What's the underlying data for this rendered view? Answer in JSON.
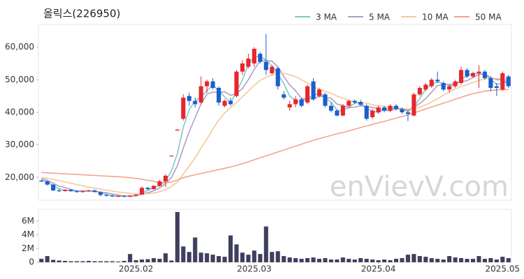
{
  "chart_data": [
    {
      "type": "candlestick",
      "title": "올릭스(226950)",
      "watermark": "enVievV.com",
      "legend": "top-right",
      "up_color": "#e8262d",
      "down_color": "#1a5fcc",
      "ylim": [
        13000,
        67000
      ],
      "yticks": [
        {
          "value": 20000,
          "label": "20,000"
        },
        {
          "value": 30000,
          "label": "30,000"
        },
        {
          "value": 40000,
          "label": "40,000"
        },
        {
          "value": 50000,
          "label": "50,000"
        },
        {
          "value": 60000,
          "label": "60,000"
        }
      ],
      "open": [
        19000,
        18800,
        17800,
        16000,
        15800,
        16200,
        15800,
        15500,
        15800,
        16000,
        15500,
        14600,
        14400,
        14200,
        14300,
        14100,
        14400,
        14700,
        16800,
        16400,
        17400,
        18800,
        26600,
        34400,
        38000,
        45000,
        43500,
        43000,
        48000,
        49500,
        47500,
        42000,
        43500,
        45000,
        52500,
        54000,
        55000,
        58000,
        55500,
        52000,
        53500,
        45500,
        41500,
        42500,
        44000,
        43000,
        49500,
        45000,
        45500,
        42000,
        40500,
        39000,
        42000,
        43500,
        43200,
        42000,
        38500,
        40000,
        41500,
        40500,
        42000,
        41000,
        40000,
        39000,
        45500,
        47000,
        48000,
        50000,
        49000,
        47000,
        48000,
        49000,
        53000,
        51000,
        52000,
        52500,
        50500,
        48000,
        47000,
        51000
      ],
      "high": [
        19300,
        19000,
        17900,
        16500,
        16400,
        16400,
        16000,
        16000,
        16200,
        16300,
        15600,
        15000,
        14700,
        14500,
        14600,
        14600,
        14900,
        17200,
        17000,
        17600,
        19200,
        21000,
        26700,
        34700,
        45500,
        46000,
        44500,
        51000,
        50000,
        50500,
        48000,
        44000,
        44500,
        53000,
        56000,
        58000,
        60000,
        58500,
        64000,
        54500,
        54000,
        46500,
        43500,
        45000,
        44500,
        48500,
        50500,
        47500,
        46000,
        43000,
        41000,
        42500,
        43800,
        44000,
        43800,
        42500,
        41000,
        42000,
        42000,
        42500,
        42500,
        41500,
        40500,
        46000,
        48000,
        49000,
        50500,
        52500,
        49500,
        48500,
        50000,
        54000,
        53500,
        52500,
        54500,
        53000,
        51000,
        49000,
        52500,
        51500
      ],
      "low": [
        18600,
        17500,
        15800,
        15500,
        15600,
        15600,
        15300,
        15300,
        15600,
        15400,
        14200,
        14100,
        14000,
        13900,
        14000,
        13900,
        14200,
        14600,
        16100,
        16300,
        17200,
        17000,
        26600,
        34400,
        37500,
        42000,
        41500,
        42500,
        46000,
        47000,
        42000,
        41500,
        42000,
        44500,
        51500,
        53500,
        54000,
        55000,
        51500,
        51500,
        47000,
        44000,
        40500,
        41500,
        41500,
        42500,
        43500,
        44500,
        41500,
        40000,
        38800,
        38800,
        41500,
        42500,
        42000,
        37500,
        38000,
        39500,
        40000,
        40000,
        40500,
        39500,
        37300,
        38800,
        45000,
        46500,
        47500,
        49000,
        46500,
        46000,
        47500,
        48500,
        50500,
        50500,
        47500,
        50000,
        46500,
        45000,
        46500,
        47500
      ],
      "close": [
        18800,
        17800,
        16000,
        15800,
        16200,
        15800,
        15500,
        15800,
        16000,
        15500,
        14600,
        14400,
        14200,
        14300,
        14100,
        14400,
        14700,
        16800,
        16400,
        17400,
        18800,
        20500,
        26700,
        34700,
        44500,
        43500,
        42500,
        48000,
        49500,
        47500,
        43000,
        43500,
        42500,
        52500,
        55000,
        56500,
        59500,
        55500,
        53000,
        54000,
        48000,
        44500,
        42500,
        44000,
        42000,
        48000,
        44000,
        47000,
        42000,
        40500,
        39000,
        42000,
        43500,
        43000,
        42300,
        38000,
        40500,
        41500,
        40500,
        42000,
        41000,
        40000,
        39500,
        45500,
        47500,
        48500,
        50000,
        49500,
        47000,
        48000,
        49500,
        53000,
        51000,
        52000,
        52500,
        50500,
        47500,
        47500,
        52000,
        48000
      ],
      "series": [
        {
          "name": "3 MA",
          "color": "#7ecbc4",
          "values": [
            19200,
            18600,
            17500,
            16500,
            16000,
            15900,
            15800,
            15700,
            15800,
            15800,
            15400,
            14800,
            14400,
            14300,
            14200,
            14300,
            14400,
            15300,
            16000,
            16900,
            17500,
            18900,
            22000,
            27300,
            35300,
            40900,
            43500,
            44700,
            46700,
            48300,
            46700,
            44700,
            43000,
            46200,
            50000,
            54700,
            57000,
            57200,
            56000,
            54200,
            51700,
            48800,
            45000,
            43700,
            42800,
            44700,
            44700,
            46300,
            44300,
            43200,
            40500,
            40500,
            41500,
            42800,
            42900,
            41100,
            40300,
            40000,
            40800,
            41300,
            41200,
            41000,
            40200,
            41700,
            44200,
            47200,
            48700,
            49300,
            48800,
            48200,
            48200,
            50200,
            51200,
            52000,
            51800,
            51700,
            50200,
            48500,
            49000,
            49200
          ]
        },
        {
          "name": "5 MA",
          "color": "#b59bc8",
          "values": [
            19600,
            19100,
            18200,
            17300,
            16900,
            16300,
            15900,
            15800,
            15900,
            15700,
            15500,
            15300,
            14900,
            14600,
            14300,
            14300,
            14300,
            14900,
            15300,
            15900,
            16800,
            18000,
            20000,
            23600,
            29000,
            34000,
            38400,
            42600,
            45600,
            46200,
            46100,
            46300,
            45200,
            45800,
            47300,
            50000,
            53200,
            55800,
            55900,
            55700,
            54000,
            51000,
            48400,
            46600,
            44200,
            44200,
            44100,
            45000,
            44600,
            44300,
            42500,
            42100,
            41400,
            41600,
            42000,
            41800,
            41500,
            41100,
            40600,
            40500,
            41100,
            41000,
            40600,
            41600,
            42700,
            44200,
            46200,
            48200,
            48500,
            48600,
            48800,
            49400,
            49700,
            50700,
            51600,
            51800,
            50700,
            50000,
            50000,
            49100
          ]
        },
        {
          "name": "10 MA",
          "color": "#f3c99a",
          "values": [
            20000,
            19700,
            19400,
            19000,
            18600,
            18200,
            17800,
            17400,
            17000,
            16700,
            16400,
            16100,
            15800,
            15500,
            15300,
            15100,
            14900,
            14900,
            15000,
            15200,
            15600,
            16200,
            17200,
            18600,
            21000,
            23500,
            26000,
            29000,
            31800,
            34800,
            37600,
            39800,
            41500,
            43000,
            44800,
            46500,
            48300,
            49800,
            50800,
            51500,
            52000,
            52000,
            51500,
            51000,
            50000,
            49000,
            47900,
            47000,
            46500,
            45800,
            45000,
            44300,
            43700,
            43200,
            43000,
            42800,
            42300,
            42000,
            41800,
            41700,
            41500,
            41200,
            41000,
            41200,
            41600,
            42300,
            43200,
            44200,
            45200,
            46300,
            47200,
            47900,
            48500,
            49200,
            49800,
            50300,
            50400,
            50400,
            50300,
            50000
          ]
        },
        {
          "name": "50 MA",
          "color": "#f2a48d",
          "values": [
            21500,
            21400,
            21300,
            21200,
            21100,
            21000,
            20900,
            20800,
            20700,
            20600,
            20500,
            20400,
            20300,
            20200,
            20100,
            19900,
            19700,
            19400,
            19100,
            18800,
            18400,
            18300,
            18600,
            19200,
            19900,
            20400,
            20800,
            21200,
            21600,
            22000,
            22400,
            22800,
            23200,
            23700,
            24200,
            24800,
            25400,
            26000,
            26600,
            27200,
            27800,
            28400,
            29000,
            29600,
            30200,
            30800,
            31400,
            31900,
            32400,
            32900,
            33400,
            33800,
            34300,
            34800,
            35300,
            35800,
            36300,
            36800,
            37200,
            37700,
            38200,
            38700,
            39200,
            39800,
            40400,
            41000,
            41600,
            42200,
            42800,
            43400,
            44000,
            44600,
            45200,
            45700,
            46100,
            46500,
            46700,
            46900,
            47000,
            47000
          ]
        }
      ]
    },
    {
      "type": "bar",
      "color": "#3f3f5f",
      "ylim": [
        0,
        7700000
      ],
      "yticks": [
        0,
        {
          "value": 2000000,
          "label": "2M"
        },
        {
          "value": 4000000,
          "label": "4M"
        },
        {
          "value": 6000000,
          "label": "6M"
        }
      ],
      "categories": [
        null,
        null,
        null,
        null,
        null,
        null,
        null,
        null,
        null,
        null,
        null,
        null,
        null,
        null,
        null,
        null,
        "2025.02",
        null,
        null,
        null,
        null,
        null,
        null,
        null,
        null,
        null,
        null,
        null,
        null,
        null,
        null,
        null,
        null,
        null,
        null,
        null,
        "2025.03",
        null,
        null,
        null,
        null,
        null,
        null,
        null,
        null,
        null,
        null,
        null,
        null,
        null,
        null,
        null,
        null,
        null,
        null,
        null,
        null,
        "2025.04",
        null,
        null,
        null,
        null,
        null,
        null,
        null,
        null,
        null,
        null,
        null,
        null,
        null,
        null,
        null,
        null,
        null,
        null,
        null,
        null,
        "2025.05",
        null
      ],
      "values": [
        500000,
        900000,
        350000,
        250000,
        200000,
        150000,
        150000,
        150000,
        200000,
        150000,
        150000,
        150000,
        150000,
        100000,
        200000,
        1200000,
        300000,
        400000,
        450000,
        600000,
        500000,
        1300000,
        250000,
        7300000,
        2300000,
        1500000,
        3600000,
        1400000,
        1300000,
        1100000,
        900000,
        800000,
        3900000,
        2600000,
        1400000,
        1100000,
        1700000,
        1200000,
        5200000,
        1500000,
        1600000,
        900000,
        700000,
        600000,
        500000,
        600000,
        700000,
        500000,
        600000,
        400000,
        400000,
        700000,
        500000,
        400000,
        600000,
        500000,
        400000,
        300000,
        400000,
        300000,
        500000,
        600000,
        1100000,
        1200000,
        900000,
        800000,
        600000,
        500000,
        400000,
        900000,
        700000,
        600000,
        500000,
        500000,
        900000,
        500000,
        600000,
        400000,
        800000,
        600000
      ]
    }
  ]
}
